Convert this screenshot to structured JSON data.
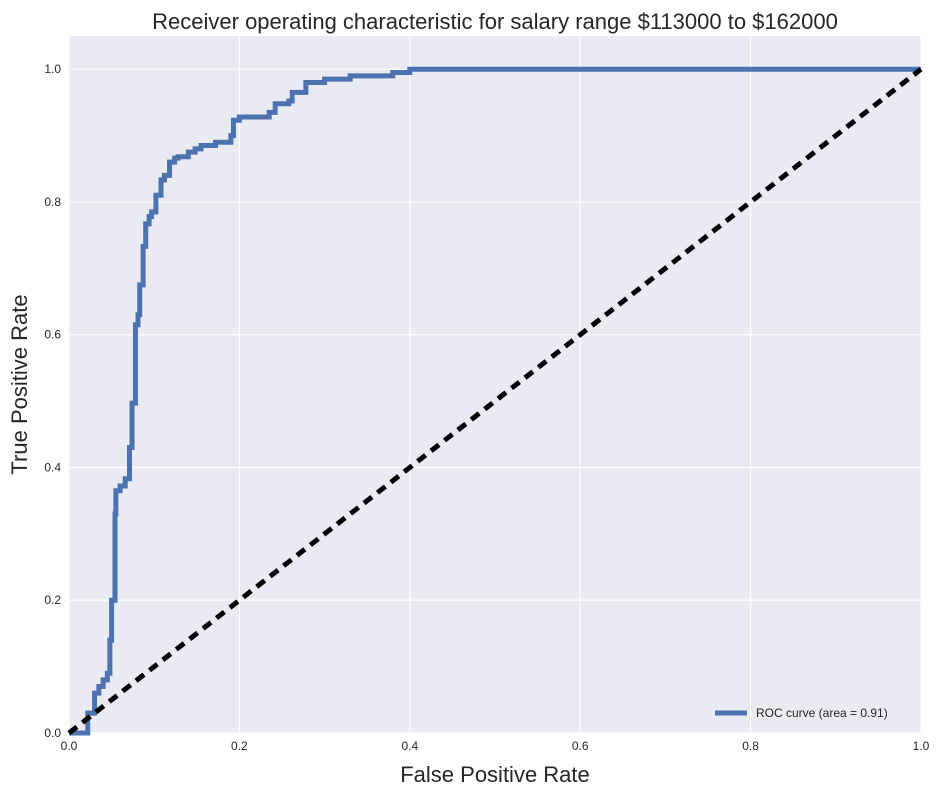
{
  "chart_data": {
    "type": "line",
    "title": "Receiver operating characteristic for salary range $113000 to $162000",
    "xlabel": "False Positive Rate",
    "ylabel": "True Positive Rate",
    "xlim": [
      0.0,
      1.0
    ],
    "ylim": [
      0.0,
      1.05
    ],
    "x_ticks": [
      "0.0",
      "0.2",
      "0.4",
      "0.6",
      "0.8",
      "1.0"
    ],
    "y_ticks": [
      "0.0",
      "0.2",
      "0.4",
      "0.6",
      "0.8",
      "1.0"
    ],
    "grid": true,
    "legend_position": "lower-right",
    "colors": {
      "roc": "#4C72B0",
      "chance": "#000000",
      "background": "#EAEAF2",
      "grid": "#FFFFFF"
    },
    "series": [
      {
        "name": "ROC curve (area = 0.91)",
        "style": "solid",
        "x": [
          0.0,
          0.022,
          0.022,
          0.03,
          0.03,
          0.035,
          0.035,
          0.04,
          0.04,
          0.045,
          0.045,
          0.048,
          0.048,
          0.05,
          0.05,
          0.054,
          0.054,
          0.055,
          0.055,
          0.06,
          0.06,
          0.066,
          0.066,
          0.071,
          0.071,
          0.074,
          0.074,
          0.078,
          0.078,
          0.081,
          0.081,
          0.083,
          0.083,
          0.087,
          0.087,
          0.09,
          0.09,
          0.094,
          0.094,
          0.097,
          0.097,
          0.102,
          0.102,
          0.108,
          0.108,
          0.112,
          0.112,
          0.118,
          0.118,
          0.124,
          0.124,
          0.128,
          0.128,
          0.14,
          0.14,
          0.148,
          0.148,
          0.155,
          0.155,
          0.172,
          0.172,
          0.19,
          0.19,
          0.193,
          0.193,
          0.2,
          0.2,
          0.235,
          0.235,
          0.242,
          0.242,
          0.258,
          0.258,
          0.262,
          0.262,
          0.278,
          0.278,
          0.3,
          0.3,
          0.33,
          0.33,
          0.38,
          0.38,
          0.4,
          0.4,
          1.0
        ],
        "y": [
          0.0,
          0.0,
          0.03,
          0.03,
          0.06,
          0.06,
          0.07,
          0.07,
          0.08,
          0.08,
          0.09,
          0.09,
          0.14,
          0.14,
          0.2,
          0.2,
          0.33,
          0.33,
          0.365,
          0.365,
          0.372,
          0.372,
          0.383,
          0.383,
          0.43,
          0.43,
          0.497,
          0.497,
          0.615,
          0.615,
          0.63,
          0.63,
          0.675,
          0.675,
          0.733,
          0.733,
          0.767,
          0.767,
          0.778,
          0.778,
          0.785,
          0.785,
          0.81,
          0.81,
          0.833,
          0.833,
          0.84,
          0.84,
          0.86,
          0.86,
          0.866,
          0.866,
          0.868,
          0.868,
          0.875,
          0.875,
          0.88,
          0.88,
          0.885,
          0.885,
          0.89,
          0.89,
          0.9,
          0.9,
          0.923,
          0.923,
          0.928,
          0.928,
          0.935,
          0.935,
          0.948,
          0.948,
          0.952,
          0.952,
          0.965,
          0.965,
          0.98,
          0.98,
          0.985,
          0.985,
          0.99,
          0.99,
          0.995,
          0.995,
          1.0,
          1.0
        ]
      },
      {
        "name": "",
        "style": "dashed",
        "x": [
          0.0,
          1.0
        ],
        "y": [
          0.0,
          1.0
        ]
      }
    ]
  }
}
